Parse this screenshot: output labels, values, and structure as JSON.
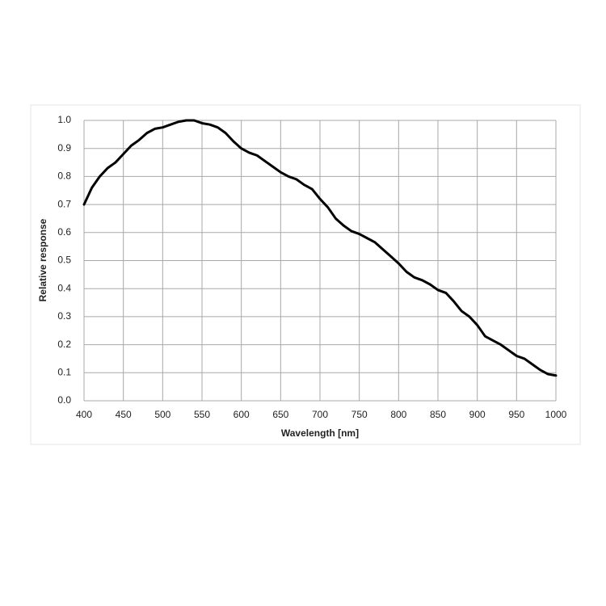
{
  "chart_data": {
    "type": "line",
    "x_label": "Wavelength [nm]",
    "y_label": "Relative response",
    "x": [
      400,
      410,
      420,
      430,
      440,
      450,
      460,
      470,
      480,
      490,
      500,
      510,
      520,
      530,
      540,
      550,
      560,
      570,
      580,
      590,
      600,
      610,
      620,
      630,
      640,
      650,
      660,
      670,
      680,
      690,
      700,
      710,
      720,
      730,
      740,
      750,
      760,
      770,
      780,
      790,
      800,
      810,
      820,
      830,
      840,
      850,
      860,
      870,
      880,
      890,
      900,
      910,
      920,
      930,
      940,
      950,
      960,
      970,
      980,
      990,
      1000
    ],
    "series": [
      {
        "name": "Relative response",
        "color": "#000000",
        "values": [
          0.7,
          0.76,
          0.8,
          0.83,
          0.85,
          0.88,
          0.91,
          0.93,
          0.955,
          0.97,
          0.975,
          0.985,
          0.995,
          1.0,
          1.0,
          0.99,
          0.985,
          0.975,
          0.955,
          0.925,
          0.9,
          0.885,
          0.875,
          0.855,
          0.835,
          0.815,
          0.8,
          0.79,
          0.77,
          0.755,
          0.72,
          0.69,
          0.65,
          0.625,
          0.605,
          0.595,
          0.58,
          0.565,
          0.54,
          0.515,
          0.49,
          0.46,
          0.44,
          0.43,
          0.415,
          0.395,
          0.385,
          0.355,
          0.32,
          0.3,
          0.27,
          0.23,
          0.215,
          0.2,
          0.18,
          0.16,
          0.15,
          0.13,
          0.11,
          0.095,
          0.09
        ]
      }
    ],
    "xlim": [
      400,
      1000
    ],
    "xticks": [
      400,
      450,
      500,
      550,
      600,
      650,
      700,
      750,
      800,
      850,
      900,
      950,
      1000
    ],
    "ylim": [
      0,
      1
    ],
    "yticks": [
      {
        "value": 0,
        "label": "0.0"
      },
      {
        "value": 0.1,
        "label": "0.1"
      },
      {
        "value": 0.2,
        "label": "0.2"
      },
      {
        "value": 0.3,
        "label": "0.3"
      },
      {
        "value": 0.4,
        "label": "0.4"
      },
      {
        "value": 0.5,
        "label": "0.5"
      },
      {
        "value": 0.6,
        "label": "0.6"
      },
      {
        "value": 0.7,
        "label": "0.7"
      },
      {
        "value": 0.8,
        "label": "0.8"
      },
      {
        "value": 0.9,
        "label": "0.9"
      },
      {
        "value": 1,
        "label": "1.0"
      }
    ],
    "grid": true
  }
}
